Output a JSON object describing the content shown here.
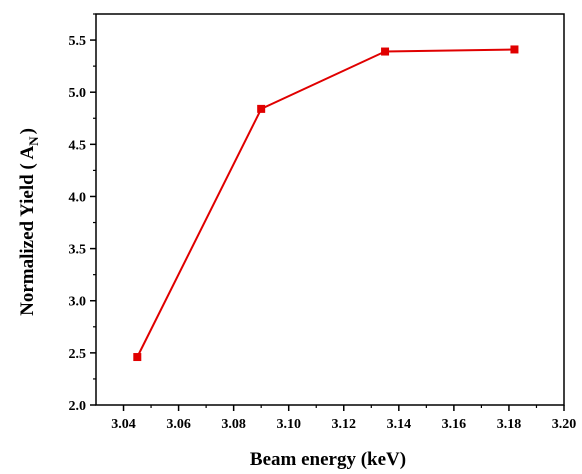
{
  "chart_data": {
    "type": "line",
    "title": "",
    "xlabel": "Beam energy (keV)",
    "ylabel_main": "Normalized Yield ( A",
    "ylabel_sub": "N",
    "ylabel_close": ")",
    "xlim": [
      3.03,
      3.2
    ],
    "ylim": [
      2.0,
      5.75
    ],
    "x_ticks": [
      "3.04",
      "3.06",
      "3.08",
      "3.10",
      "3.12",
      "3.14",
      "3.16",
      "3.18",
      "3.20"
    ],
    "x_tick_values": [
      3.04,
      3.06,
      3.08,
      3.1,
      3.12,
      3.14,
      3.16,
      3.18,
      3.2
    ],
    "y_ticks": [
      "2.0",
      "2.5",
      "3.0",
      "3.5",
      "4.0",
      "4.5",
      "5.0",
      "5.5"
    ],
    "y_tick_values": [
      2.0,
      2.5,
      3.0,
      3.5,
      4.0,
      4.5,
      5.0,
      5.5
    ],
    "grid": false,
    "series": [
      {
        "color": "#e00000",
        "marker": "square",
        "x": [
          3.045,
          3.09,
          3.135,
          3.182
        ],
        "y": [
          2.46,
          4.84,
          5.39,
          5.41
        ]
      }
    ]
  }
}
